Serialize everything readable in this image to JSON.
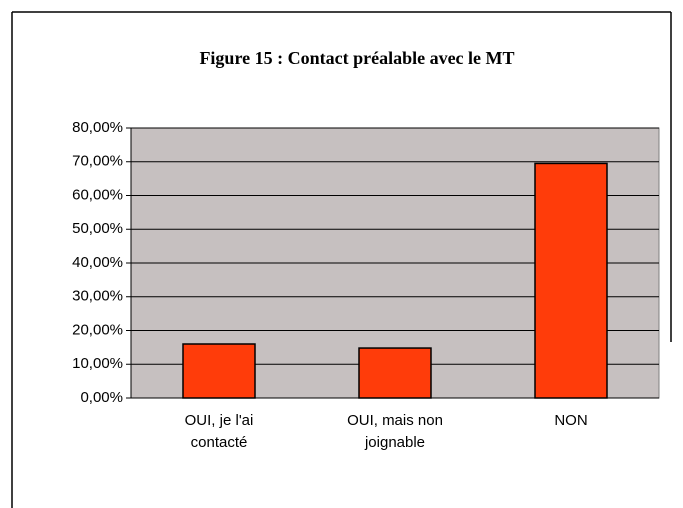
{
  "chart_data": {
    "type": "bar",
    "title": "Figure 15 : Contact préalable avec le MT",
    "categories": [
      "OUI, je l'ai contacté",
      "OUI, mais non joignable",
      "NON"
    ],
    "values": [
      16,
      14.8,
      69.5
    ],
    "color": "#ff3c0a",
    "ylim": [
      0,
      80
    ],
    "yticks": [
      {
        "value": 0,
        "label": "0,00%"
      },
      {
        "value": 10,
        "label": "10,00%"
      },
      {
        "value": 20,
        "label": "20,00%"
      },
      {
        "value": 30,
        "label": "30,00%"
      },
      {
        "value": 40,
        "label": "40,00%"
      },
      {
        "value": 50,
        "label": "50,00%"
      },
      {
        "value": 60,
        "label": "60,00%"
      },
      {
        "value": 70,
        "label": "70,00%"
      },
      {
        "value": 80,
        "label": "80,00%"
      }
    ],
    "grid": true
  }
}
